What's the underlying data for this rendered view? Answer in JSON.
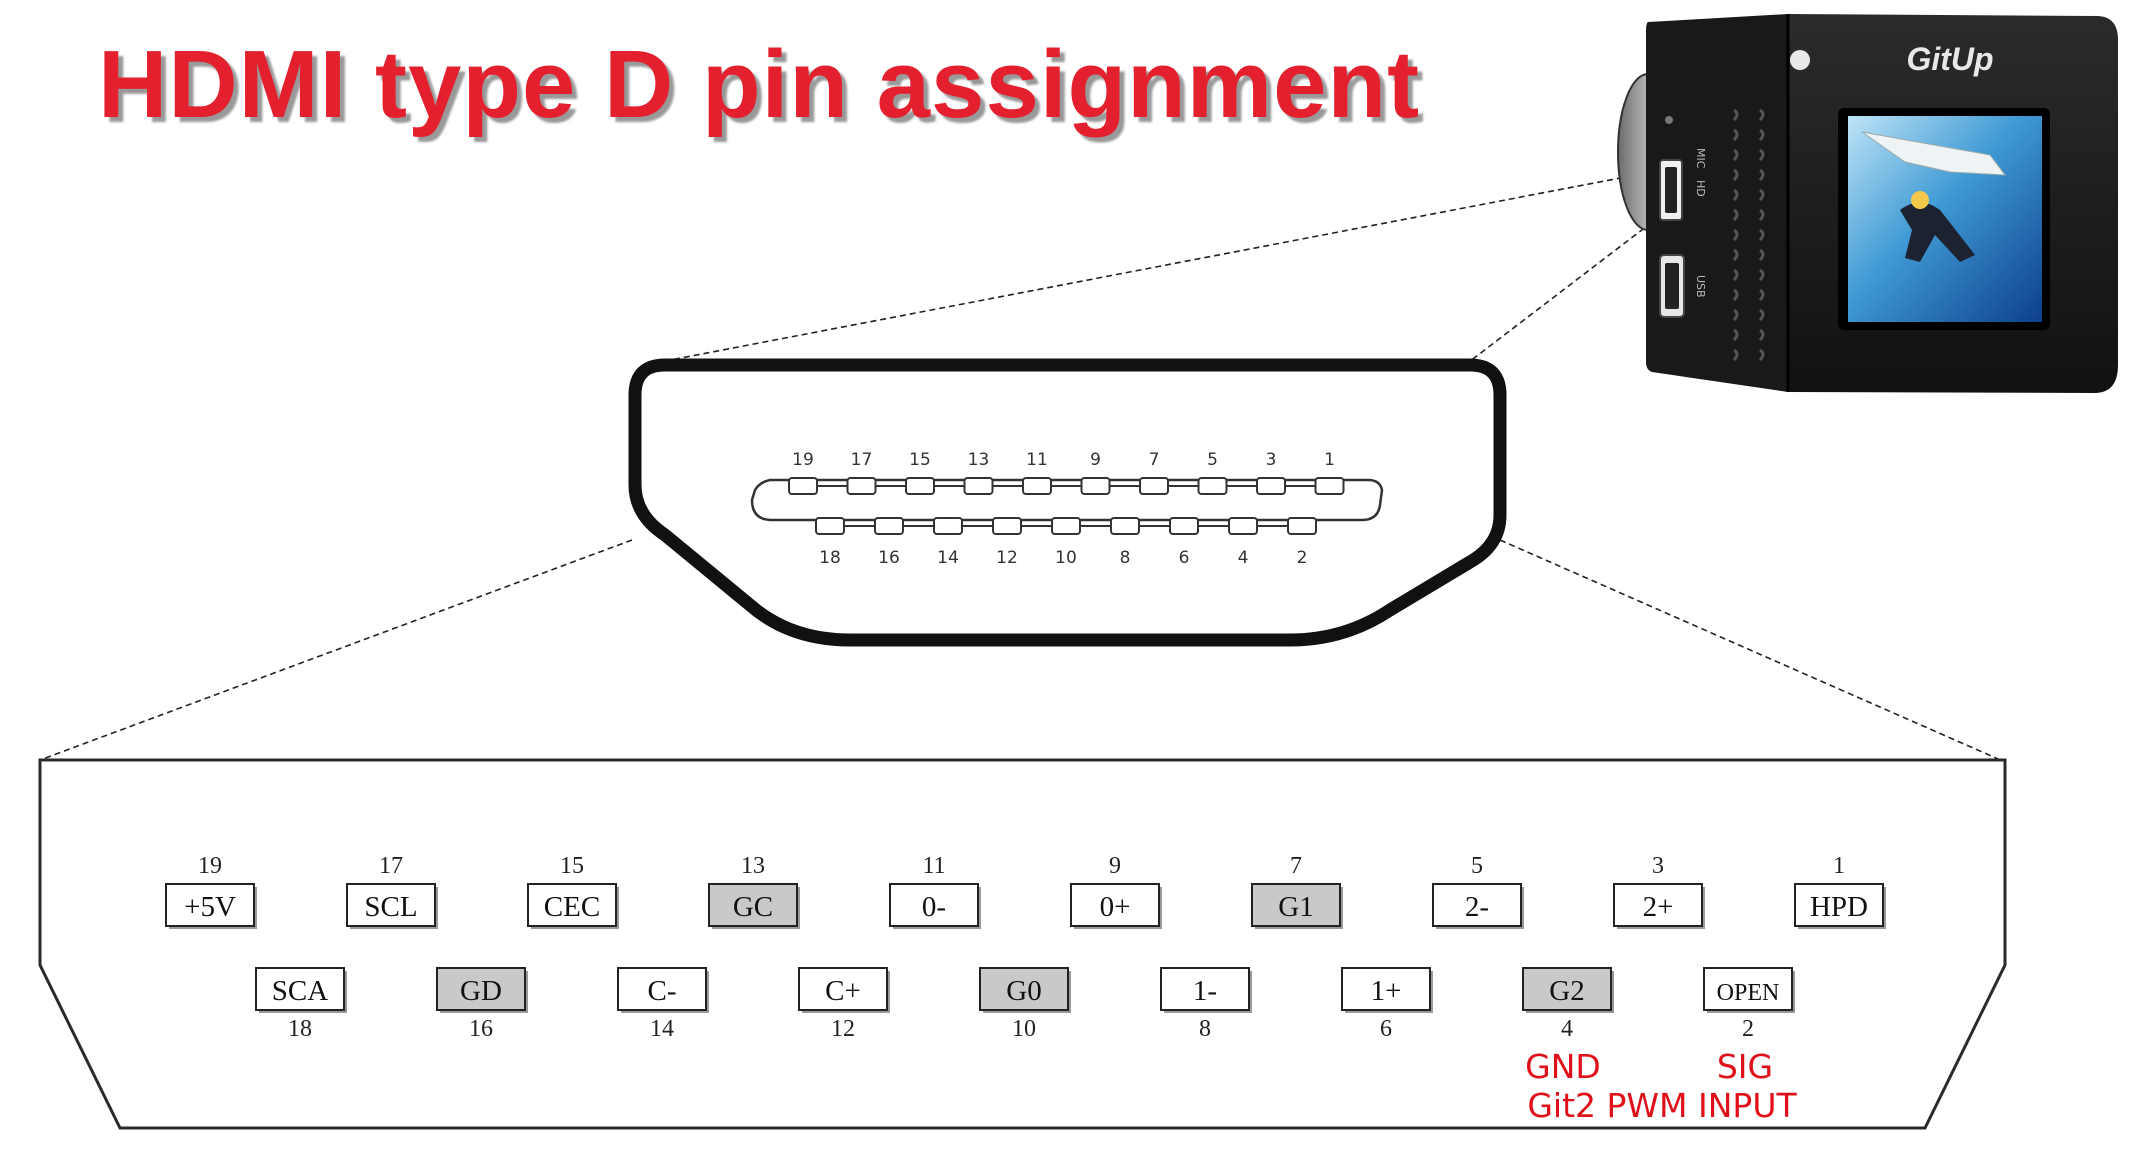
{
  "title": "HDMI type D pin assignment",
  "camera": {
    "brand": "GitUp",
    "port_labels": {
      "mic": "MIC",
      "hd": "HD",
      "usb": "USB"
    }
  },
  "top_pins": [
    {
      "num": "19",
      "label": "+5V",
      "shaded": false
    },
    {
      "num": "17",
      "label": "SCL",
      "shaded": false
    },
    {
      "num": "15",
      "label": "CEC",
      "shaded": false
    },
    {
      "num": "13",
      "label": "GC",
      "shaded": true
    },
    {
      "num": "11",
      "label": "0-",
      "shaded": false
    },
    {
      "num": "9",
      "label": "0+",
      "shaded": false
    },
    {
      "num": "7",
      "label": "G1",
      "shaded": true
    },
    {
      "num": "5",
      "label": "2-",
      "shaded": false
    },
    {
      "num": "3",
      "label": "2+",
      "shaded": false
    },
    {
      "num": "1",
      "label": "HPD",
      "shaded": false
    }
  ],
  "bottom_pins": [
    {
      "num": "18",
      "label": "SCA",
      "shaded": false
    },
    {
      "num": "16",
      "label": "GD",
      "shaded": true
    },
    {
      "num": "14",
      "label": "C-",
      "shaded": false
    },
    {
      "num": "12",
      "label": "C+",
      "shaded": false
    },
    {
      "num": "10",
      "label": "G0",
      "shaded": true
    },
    {
      "num": "8",
      "label": "1-",
      "shaded": false
    },
    {
      "num": "6",
      "label": "1+",
      "shaded": false
    },
    {
      "num": "4",
      "label": "G2",
      "shaded": true
    },
    {
      "num": "2",
      "label": "OPEN",
      "shaded": false
    }
  ],
  "annotations": {
    "gnd": "GND",
    "sig": "SIG",
    "bottom_line": "Git2 PWM INPUT"
  },
  "colors": {
    "title": "#e4202e",
    "annotation": "#e0101a",
    "shaded_pin": "#c9c9c9",
    "outline": "#111111"
  }
}
